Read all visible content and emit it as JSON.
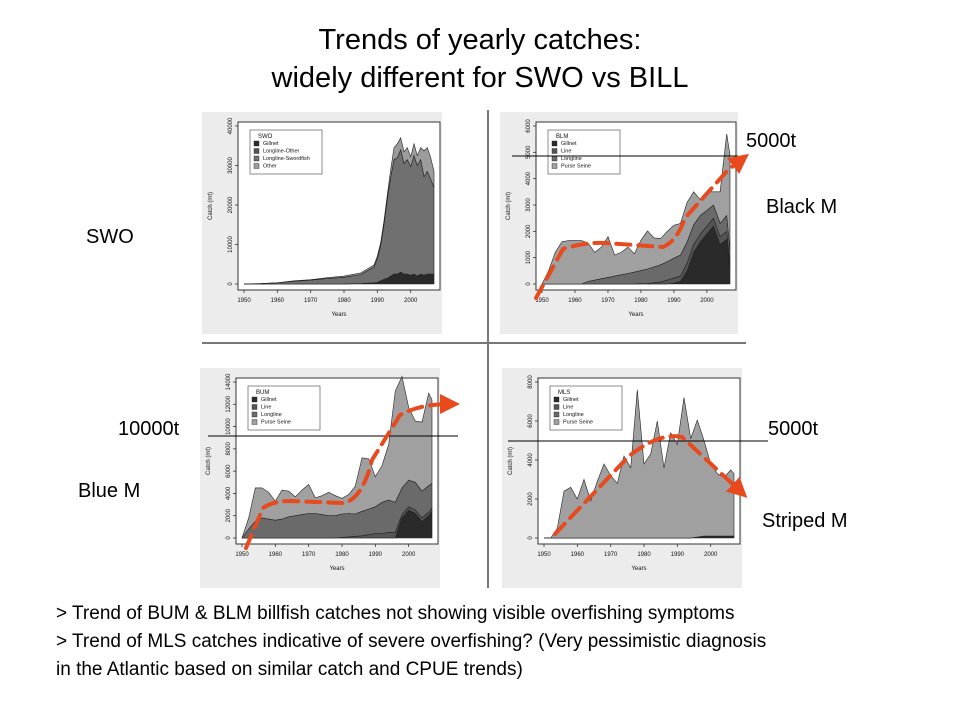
{
  "slide": {
    "title_line1": "Trends of yearly catches:",
    "title_line2": "widely different for SWO vs BILL",
    "labels": {
      "swo": "SWO",
      "black_m": "Black M",
      "blue_m": "Blue M",
      "striped_m": "Striped M",
      "blm_level": "5000t",
      "bum_level": "10000t",
      "mls_level": "5000t"
    },
    "bullets": [
      "> Trend of BUM & BLM billfish catches not showing visible overfishing symptoms",
      "> Trend of MLS catches indicative of severe overfishing? (Very pessimistic diagnosis",
      "in the Atlantic based on similar catch and CPUE trends)"
    ]
  },
  "chart_data": [
    {
      "id": "swo",
      "type": "area",
      "stacked": true,
      "legend_title": "SWO",
      "xlabel": "Years",
      "ylabel": "Catch (mt)",
      "xlim": [
        1950,
        2007
      ],
      "ylim": [
        0,
        40000
      ],
      "x_ticks": [
        1950,
        1960,
        1970,
        1980,
        1990,
        2000
      ],
      "y_ticks": [
        0,
        10000,
        20000,
        30000,
        40000
      ],
      "x": [
        1950,
        1955,
        1960,
        1965,
        1970,
        1975,
        1980,
        1985,
        1989,
        1990,
        1991,
        1992,
        1993,
        1994,
        1995,
        1996,
        1997,
        1998,
        1999,
        2000,
        2001,
        2002,
        2003,
        2004,
        2005,
        2006,
        2007
      ],
      "series": [
        {
          "name": "Gillnet",
          "color": "#2a2a2a",
          "values": [
            0,
            0,
            0,
            0,
            0,
            0,
            0,
            100,
            300,
            400,
            800,
            1200,
            1500,
            2000,
            2500,
            2500,
            3000,
            2500,
            2500,
            2200,
            2500,
            2000,
            2500,
            2200,
            2500,
            2500,
            2500
          ]
        },
        {
          "name": "Longline-Other",
          "color": "#555555",
          "values": [
            0,
            0,
            0,
            0,
            0,
            0,
            0,
            0,
            0,
            0,
            0,
            0,
            0,
            0,
            0,
            0,
            0,
            0,
            0,
            0,
            0,
            0,
            0,
            0,
            0,
            0,
            0
          ]
        },
        {
          "name": "Longline-Swordfish",
          "color": "#707070",
          "values": [
            0,
            100,
            300,
            700,
            1000,
            1400,
            1700,
            2300,
            4000,
            6000,
            9000,
            14000,
            20000,
            25000,
            29000,
            29500,
            31000,
            28000,
            29000,
            27500,
            30000,
            28000,
            29000,
            25000,
            26000,
            24000,
            22000
          ]
        },
        {
          "name": "Other",
          "color": "#9c9c9c",
          "values": [
            0,
            0,
            0,
            100,
            100,
            200,
            300,
            400,
            500,
            600,
            700,
            800,
            1000,
            2000,
            3000,
            3500,
            3000,
            3000,
            3000,
            2500,
            3000,
            2500,
            3000,
            6500,
            6000,
            5500,
            4000
          ]
        }
      ]
    },
    {
      "id": "blm",
      "type": "area",
      "stacked": true,
      "legend_title": "BLM",
      "xlabel": "Years",
      "ylabel": "Catch (mt)",
      "xlim": [
        1950,
        2007
      ],
      "ylim": [
        0,
        6000
      ],
      "x_ticks": [
        1950,
        1960,
        1970,
        1980,
        1990,
        2000
      ],
      "y_ticks": [
        0,
        1000,
        2000,
        3000,
        4000,
        5000,
        6000
      ],
      "x": [
        1950,
        1952,
        1954,
        1956,
        1958,
        1960,
        1962,
        1964,
        1966,
        1968,
        1970,
        1972,
        1974,
        1976,
        1978,
        1980,
        1982,
        1984,
        1986,
        1988,
        1990,
        1992,
        1994,
        1996,
        1998,
        2000,
        2002,
        2004,
        2006,
        2007
      ],
      "series": [
        {
          "name": "Gillnet",
          "color": "#2a2a2a",
          "values": [
            0,
            0,
            0,
            0,
            0,
            0,
            0,
            0,
            0,
            0,
            0,
            0,
            0,
            0,
            0,
            0,
            0,
            0,
            0,
            0,
            30,
            100,
            500,
            1200,
            1600,
            1900,
            2200,
            1500,
            1700,
            600
          ]
        },
        {
          "name": "Line",
          "color": "#555555",
          "values": [
            0,
            0,
            0,
            0,
            0,
            0,
            0,
            0,
            0,
            0,
            0,
            0,
            0,
            0,
            0,
            10,
            20,
            50,
            80,
            150,
            200,
            200,
            300,
            300,
            300,
            300,
            300,
            300,
            300,
            200
          ]
        },
        {
          "name": "Longline",
          "color": "#6a6a6a",
          "values": [
            0,
            0,
            0,
            0,
            0,
            0,
            0,
            100,
            150,
            200,
            250,
            300,
            350,
            400,
            450,
            500,
            550,
            600,
            650,
            700,
            750,
            800,
            800,
            750,
            700,
            600,
            500,
            500,
            600,
            500
          ]
        },
        {
          "name": "Purse Seine",
          "color": "#a0a0a0",
          "values": [
            0,
            500,
            1200,
            1600,
            1650,
            1650,
            1650,
            1450,
            1050,
            1200,
            1550,
            800,
            850,
            1000,
            700,
            1150,
            1450,
            1100,
            1000,
            1150,
            1250,
            1200,
            1500,
            1250,
            600,
            700,
            500,
            1200,
            3100,
            3600
          ]
        }
      ]
    },
    {
      "id": "bum",
      "type": "area",
      "stacked": true,
      "legend_title": "BUM",
      "xlabel": "Years",
      "ylabel": "Catch (mt)",
      "xlim": [
        1950,
        2007
      ],
      "ylim": [
        0,
        14000
      ],
      "x_ticks": [
        1950,
        1960,
        1970,
        1980,
        1990,
        2000
      ],
      "y_ticks": [
        0,
        2000,
        4000,
        6000,
        8000,
        10000,
        12000,
        14000
      ],
      "x": [
        1950,
        1952,
        1954,
        1956,
        1958,
        1960,
        1962,
        1964,
        1966,
        1968,
        1970,
        1972,
        1974,
        1976,
        1978,
        1980,
        1982,
        1984,
        1986,
        1988,
        1990,
        1992,
        1994,
        1996,
        1998,
        2000,
        2002,
        2004,
        2006,
        2007
      ],
      "series": [
        {
          "name": "Gillnet",
          "color": "#2a2a2a",
          "values": [
            0,
            0,
            0,
            0,
            0,
            0,
            0,
            0,
            0,
            0,
            0,
            0,
            0,
            0,
            0,
            0,
            0,
            0,
            0,
            0,
            0,
            0,
            0,
            0,
            1800,
            2500,
            2200,
            1500,
            2000,
            2400
          ]
        },
        {
          "name": "Line",
          "color": "#555555",
          "values": [
            0,
            0,
            0,
            0,
            0,
            0,
            0,
            0,
            0,
            0,
            0,
            0,
            0,
            0,
            0,
            50,
            100,
            150,
            200,
            300,
            400,
            400,
            500,
            500,
            300,
            300,
            300,
            300,
            300,
            300
          ]
        },
        {
          "name": "Longline",
          "color": "#6a6a6a",
          "values": [
            0,
            800,
            1500,
            1800,
            1700,
            1600,
            1700,
            1900,
            2000,
            2100,
            2200,
            2200,
            2100,
            2000,
            2000,
            2100,
            2100,
            2000,
            2200,
            2300,
            2400,
            2800,
            2900,
            2700,
            2400,
            2400,
            2500,
            2400,
            2400,
            2200
          ]
        },
        {
          "name": "Purse Seine",
          "color": "#a0a0a0",
          "values": [
            0,
            1000,
            3000,
            2700,
            2400,
            1700,
            2600,
            2300,
            1700,
            2200,
            2600,
            1400,
            1700,
            2100,
            1800,
            1400,
            1700,
            2500,
            4800,
            4500,
            2700,
            3300,
            5000,
            10000,
            10000,
            6500,
            5500,
            6200,
            8300,
            7500
          ]
        }
      ]
    },
    {
      "id": "mls",
      "type": "area",
      "stacked": true,
      "legend_title": "MLS",
      "xlabel": "Years",
      "ylabel": "Catch (mt)",
      "xlim": [
        1950,
        2007
      ],
      "ylim": [
        0,
        8000
      ],
      "x_ticks": [
        1950,
        1960,
        1970,
        1980,
        1990,
        2000
      ],
      "y_ticks": [
        0,
        2000,
        4000,
        6000,
        8000
      ],
      "x": [
        1950,
        1952,
        1954,
        1956,
        1958,
        1960,
        1962,
        1964,
        1966,
        1968,
        1970,
        1972,
        1974,
        1976,
        1978,
        1980,
        1982,
        1984,
        1986,
        1988,
        1990,
        1992,
        1994,
        1996,
        1998,
        2000,
        2002,
        2004,
        2006,
        2007
      ],
      "series": [
        {
          "name": "Gillnet",
          "color": "#2a2a2a",
          "values": [
            0,
            0,
            0,
            0,
            0,
            0,
            0,
            0,
            0,
            0,
            0,
            0,
            0,
            0,
            0,
            0,
            0,
            0,
            0,
            0,
            0,
            0,
            0,
            50,
            100,
            100,
            100,
            100,
            100,
            100
          ]
        },
        {
          "name": "Line",
          "color": "#555555",
          "values": [
            0,
            0,
            0,
            0,
            0,
            0,
            0,
            0,
            0,
            0,
            0,
            0,
            0,
            0,
            0,
            0,
            0,
            0,
            0,
            0,
            0,
            0,
            0,
            0,
            0,
            0,
            0,
            0,
            0,
            0
          ]
        },
        {
          "name": "Longline",
          "color": "#6a6a6a",
          "values": [
            0,
            0,
            0,
            0,
            0,
            0,
            0,
            0,
            0,
            0,
            0,
            0,
            0,
            0,
            0,
            0,
            0,
            0,
            0,
            0,
            0,
            0,
            0,
            0,
            0,
            0,
            0,
            0,
            0,
            0
          ]
        },
        {
          "name": "Purse Seine",
          "color": "#a0a0a0",
          "values": [
            0,
            0,
            500,
            2400,
            2600,
            2000,
            3000,
            1900,
            2900,
            3800,
            3200,
            2800,
            4200,
            3600,
            7600,
            3800,
            4300,
            6000,
            3600,
            5400,
            4800,
            7200,
            5100,
            6000,
            4900,
            3700,
            3200,
            3000,
            3400,
            3200
          ]
        }
      ]
    }
  ]
}
